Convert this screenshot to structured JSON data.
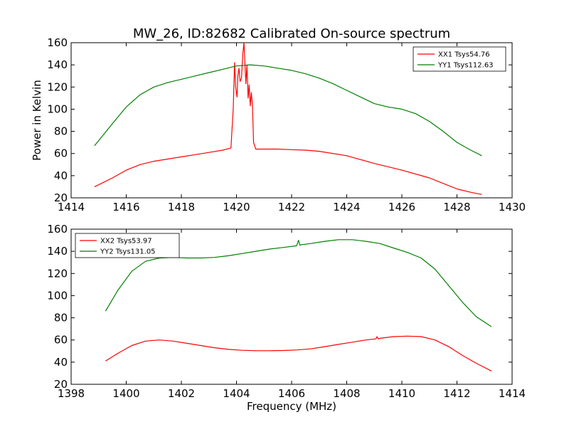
{
  "figure": {
    "title": "MW_26, ID:82682 Calibrated On-source spectrum"
  },
  "chart_data": [
    {
      "type": "line",
      "title": "MW_26, ID:82682 Calibrated On-source spectrum",
      "xlabel": "",
      "ylabel": "Power in Kelvin",
      "xlim": [
        1414,
        1430
      ],
      "ylim": [
        20,
        160
      ],
      "xticks": [
        1414,
        1416,
        1418,
        1420,
        1422,
        1424,
        1426,
        1428,
        1430
      ],
      "yticks": [
        20,
        40,
        60,
        80,
        100,
        120,
        140,
        160
      ],
      "legend_position": "top-right",
      "series": [
        {
          "name": "XX1 Tsys54.76",
          "color": "#ff0000",
          "x": [
            1414.85,
            1415.5,
            1416,
            1416.5,
            1417,
            1417.5,
            1418,
            1418.5,
            1419,
            1419.5,
            1419.8,
            1419.88,
            1419.93,
            1419.97,
            1420.02,
            1420.05,
            1420.09,
            1420.13,
            1420.18,
            1420.23,
            1420.27,
            1420.3,
            1420.34,
            1420.38,
            1420.42,
            1420.46,
            1420.5,
            1420.54,
            1420.58,
            1420.62,
            1420.7,
            1421,
            1421.5,
            1422,
            1422.5,
            1423,
            1424,
            1425,
            1426,
            1427,
            1428,
            1428.5,
            1428.9
          ],
          "y": [
            30,
            38,
            45,
            50,
            53,
            55,
            57,
            59,
            61,
            63,
            65,
            100,
            142,
            120,
            111,
            130,
            137,
            125,
            128,
            150,
            160,
            145,
            123,
            140,
            110,
            122,
            103,
            115,
            103,
            70,
            64,
            64,
            64,
            63.5,
            63,
            62,
            58,
            51,
            45,
            38,
            28,
            25,
            23
          ]
        },
        {
          "name": "YY1 Tsys112.63",
          "color": "#008000",
          "x": [
            1414.85,
            1415.5,
            1416,
            1416.5,
            1417,
            1417.5,
            1418,
            1418.5,
            1419,
            1419.5,
            1420,
            1420.5,
            1421,
            1421.5,
            1422,
            1422.5,
            1423,
            1423.5,
            1424,
            1424.5,
            1425,
            1425.5,
            1426,
            1426.5,
            1427,
            1427.5,
            1428,
            1428.5,
            1428.9
          ],
          "y": [
            67,
            87,
            102,
            113,
            120,
            124,
            127,
            130,
            133,
            136,
            139,
            140,
            139,
            137,
            135,
            132,
            128,
            123,
            117,
            111,
            105,
            102,
            100,
            96,
            89,
            80,
            70,
            63,
            58
          ]
        }
      ]
    },
    {
      "type": "line",
      "title": "",
      "xlabel": "Frequency (MHz)",
      "ylabel": "",
      "xlim": [
        1398,
        1414
      ],
      "ylim": [
        20,
        160
      ],
      "xticks": [
        1398,
        1400,
        1402,
        1404,
        1406,
        1408,
        1410,
        1412,
        1414
      ],
      "yticks": [
        20,
        40,
        60,
        80,
        100,
        120,
        140,
        160
      ],
      "legend_position": "top-left",
      "series": [
        {
          "name": "XX2 Tsys53.97",
          "color": "#ff0000",
          "x": [
            1399.25,
            1399.7,
            1400.2,
            1400.7,
            1401.2,
            1401.7,
            1402.2,
            1402.7,
            1403.2,
            1403.7,
            1404.2,
            1404.7,
            1405.2,
            1405.7,
            1406.2,
            1406.7,
            1407.2,
            1407.7,
            1408.2,
            1408.7,
            1409.06,
            1409.1,
            1409.14,
            1409.2,
            1409.7,
            1410.2,
            1410.7,
            1411.2,
            1411.7,
            1412.2,
            1412.7,
            1413.25
          ],
          "y": [
            41,
            48,
            55,
            59,
            60,
            59,
            57,
            55,
            53,
            51.5,
            50.7,
            50.3,
            50.3,
            50.5,
            51,
            52,
            54,
            56,
            58,
            60,
            61,
            63,
            61,
            61.5,
            63,
            63.5,
            63,
            60,
            54,
            46,
            39,
            32
          ]
        },
        {
          "name": "YY2 Tsys131.05",
          "color": "#008000",
          "x": [
            1399.25,
            1399.7,
            1400.2,
            1400.7,
            1401.2,
            1401.7,
            1402.2,
            1402.7,
            1403.2,
            1403.7,
            1404.2,
            1404.7,
            1405.2,
            1405.7,
            1406.18,
            1406.25,
            1406.3,
            1406.36,
            1406.7,
            1407.2,
            1407.7,
            1408.2,
            1408.7,
            1409.2,
            1409.7,
            1410.2,
            1410.7,
            1411.2,
            1411.7,
            1412.2,
            1412.7,
            1413.25
          ],
          "y": [
            86,
            105,
            122,
            131,
            134,
            134.5,
            134,
            134,
            134.5,
            136,
            138,
            140,
            142,
            143.5,
            145,
            150,
            145.5,
            146,
            147,
            149,
            150.5,
            150.5,
            149,
            147,
            143,
            139,
            134,
            124,
            109,
            94,
            81,
            72
          ]
        }
      ]
    }
  ]
}
